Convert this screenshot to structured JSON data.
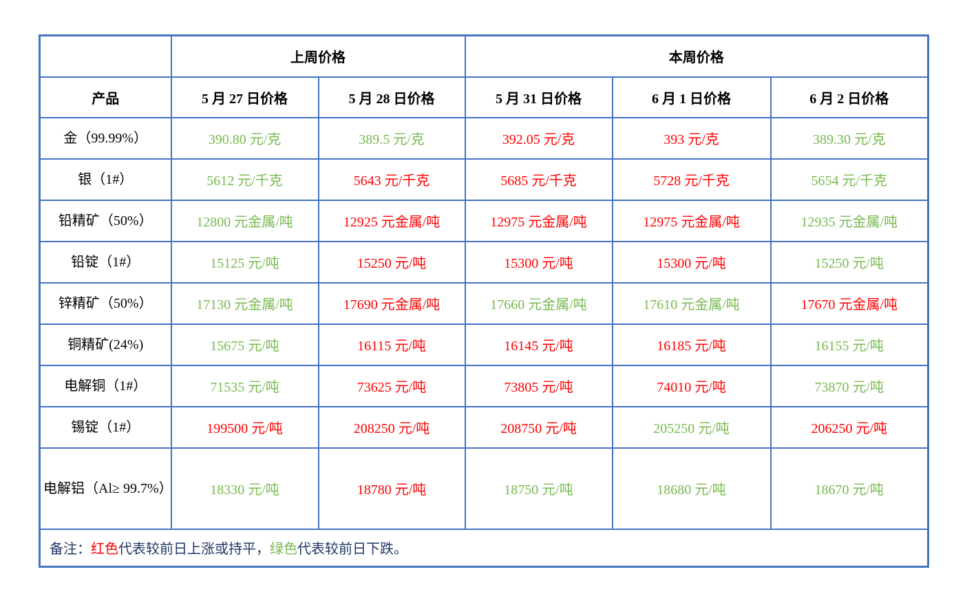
{
  "colors": {
    "border_blue": "#4472C4",
    "price_up_red": "#FF0000",
    "price_down_green": "#77B84E",
    "header_text": "#000000",
    "note_navy": "#1F3864"
  },
  "table": {
    "header": {
      "product_label": "产品",
      "last_week_label": "上周价格",
      "this_week_label": "本周价格",
      "date_columns": [
        "5 月 27 日价格",
        "5 月 28 日价格",
        "5 月 31 日价格",
        "6 月 1 日价格",
        "6 月 2 日价格"
      ]
    },
    "rows": [
      {
        "product": "金（99.99%）",
        "prices": [
          {
            "text": "390.80 元/克",
            "trend": "down"
          },
          {
            "text": "389.5 元/克",
            "trend": "down"
          },
          {
            "text": "392.05 元/克",
            "trend": "up"
          },
          {
            "text": "393 元/克",
            "trend": "up"
          },
          {
            "text": "389.30 元/克",
            "trend": "down"
          }
        ]
      },
      {
        "product": "银（1#）",
        "prices": [
          {
            "text": "5612 元/千克",
            "trend": "down"
          },
          {
            "text": "5643 元/千克",
            "trend": "up"
          },
          {
            "text": "5685 元/千克",
            "trend": "up"
          },
          {
            "text": "5728 元/千克",
            "trend": "up"
          },
          {
            "text": "5654 元/千克",
            "trend": "down"
          }
        ]
      },
      {
        "product": "铅精矿（50%）",
        "prices": [
          {
            "text": "12800 元金属/吨",
            "trend": "down"
          },
          {
            "text": "12925 元金属/吨",
            "trend": "up"
          },
          {
            "text": "12975 元金属/吨",
            "trend": "up"
          },
          {
            "text": "12975 元金属/吨",
            "trend": "up"
          },
          {
            "text": "12935 元金属/吨",
            "trend": "down"
          }
        ]
      },
      {
        "product": "铅锭（1#）",
        "prices": [
          {
            "text": "15125 元/吨",
            "trend": "down"
          },
          {
            "text": "15250 元/吨",
            "trend": "up"
          },
          {
            "text": "15300 元/吨",
            "trend": "up"
          },
          {
            "text": "15300 元/吨",
            "trend": "up"
          },
          {
            "text": "15250 元/吨",
            "trend": "down"
          }
        ]
      },
      {
        "product": "锌精矿（50%）",
        "prices": [
          {
            "text": "17130 元金属/吨",
            "trend": "down"
          },
          {
            "text": "17690 元金属/吨",
            "trend": "up"
          },
          {
            "text": "17660 元金属/吨",
            "trend": "down"
          },
          {
            "text": "17610 元金属/吨",
            "trend": "down"
          },
          {
            "text": "17670 元金属/吨",
            "trend": "up"
          }
        ]
      },
      {
        "product": "铜精矿(24%)",
        "prices": [
          {
            "text": "15675 元/吨",
            "trend": "down"
          },
          {
            "text": "16115 元/吨",
            "trend": "up"
          },
          {
            "text": "16145 元/吨",
            "trend": "up"
          },
          {
            "text": "16185 元/吨",
            "trend": "up"
          },
          {
            "text": "16155 元/吨",
            "trend": "down"
          }
        ]
      },
      {
        "product": "电解铜（1#）",
        "prices": [
          {
            "text": "71535 元/吨",
            "trend": "down"
          },
          {
            "text": "73625 元/吨",
            "trend": "up"
          },
          {
            "text": "73805 元/吨",
            "trend": "up"
          },
          {
            "text": "74010 元/吨",
            "trend": "up"
          },
          {
            "text": "73870 元/吨",
            "trend": "down"
          }
        ]
      },
      {
        "product": "锡锭（1#）",
        "prices": [
          {
            "text": "199500 元/吨",
            "trend": "up"
          },
          {
            "text": "208250 元/吨",
            "trend": "up"
          },
          {
            "text": "208750 元/吨",
            "trend": "up"
          },
          {
            "text": "205250 元/吨",
            "trend": "down"
          },
          {
            "text": "206250 元/吨",
            "trend": "up"
          }
        ]
      },
      {
        "product": "电解铝（Al≥ 99.7%）",
        "prices": [
          {
            "text": "18330 元/吨",
            "trend": "down"
          },
          {
            "text": "18780 元/吨",
            "trend": "up"
          },
          {
            "text": "18750 元/吨",
            "trend": "down"
          },
          {
            "text": "18680 元/吨",
            "trend": "down"
          },
          {
            "text": "18670 元/吨",
            "trend": "down"
          }
        ]
      }
    ],
    "note_segments": [
      {
        "text": "备注：",
        "color": "navy"
      },
      {
        "text": "红色",
        "color": "red"
      },
      {
        "text": "代表较前日上涨或持平，",
        "color": "navy"
      },
      {
        "text": "绿色",
        "color": "green"
      },
      {
        "text": "代表较前日下跌。",
        "color": "navy"
      }
    ]
  }
}
